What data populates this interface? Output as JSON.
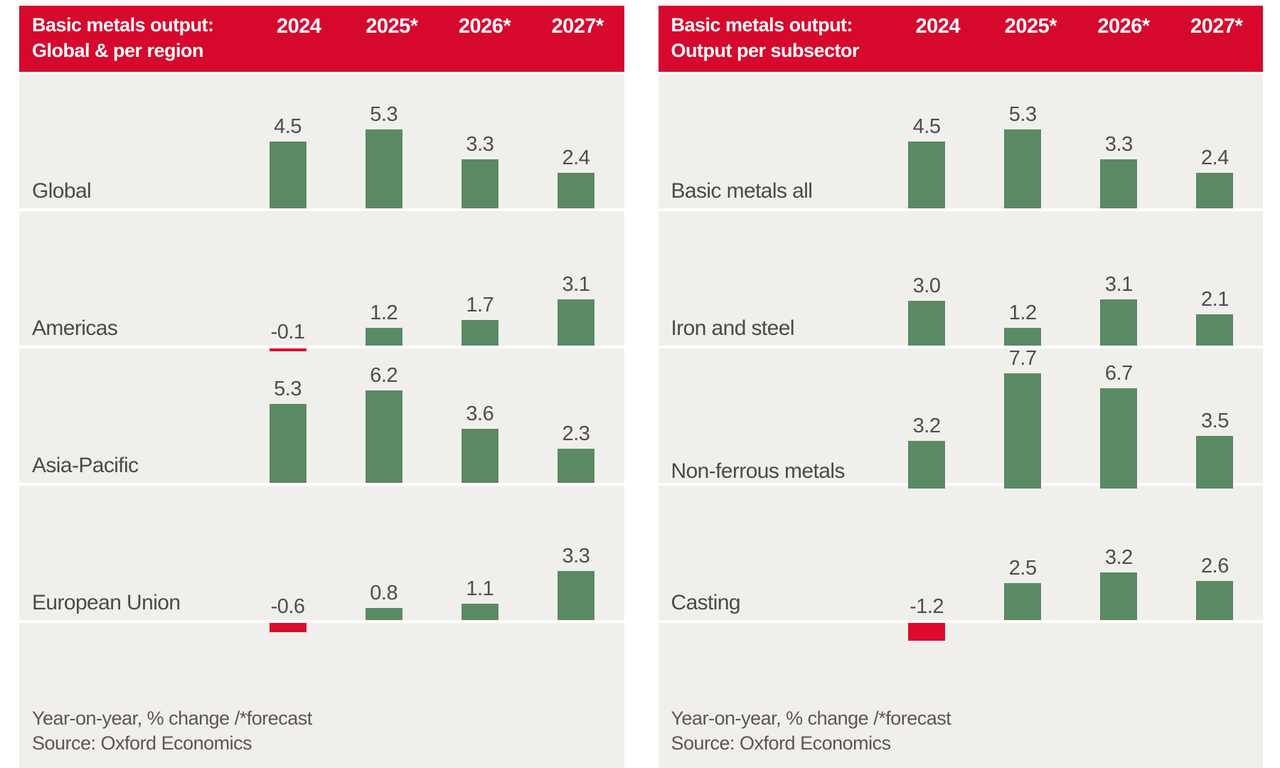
{
  "colors": {
    "header_bg": "#d6082e",
    "panel_bg": "#f1efec",
    "positive_bar": "#5a8a64",
    "negative_bar": "#dc0a2d",
    "header_text": "#ffffff",
    "row_label_text": "#4c4a47",
    "value_text": "#4f4d4b",
    "footer_text": "#5a5753",
    "separator": "#ffffff"
  },
  "chart_data": [
    {
      "type": "bar",
      "title": "Basic metals output:\nGlobal & per region",
      "columns": [
        "2024",
        "2025*",
        "2026*",
        "2027*"
      ],
      "rows": [
        {
          "label": "Global",
          "values": [
            4.5,
            5.3,
            3.3,
            2.4
          ]
        },
        {
          "label": "Americas",
          "values": [
            -0.1,
            1.2,
            1.7,
            3.1
          ]
        },
        {
          "label": "Asia-Pacific",
          "values": [
            5.3,
            6.2,
            3.6,
            2.3
          ]
        },
        {
          "label": "European Union",
          "values": [
            -0.6,
            0.8,
            1.1,
            3.3
          ]
        }
      ],
      "footnote": "Year-on-year, % change /*forecast",
      "source": "Source: Oxford Economics",
      "legend_position": "none",
      "grid": false
    },
    {
      "type": "bar",
      "title": "Basic metals output:\nOutput per subsector",
      "columns": [
        "2024",
        "2025*",
        "2026*",
        "2027*"
      ],
      "rows": [
        {
          "label": "Basic metals all",
          "values": [
            4.5,
            5.3,
            3.3,
            2.4
          ]
        },
        {
          "label": "Iron and steel",
          "values": [
            3.0,
            1.2,
            3.1,
            2.1
          ]
        },
        {
          "label": "Non-ferrous metals",
          "values": [
            3.2,
            7.7,
            6.7,
            3.5
          ]
        },
        {
          "label": "Casting",
          "values": [
            -1.2,
            2.5,
            3.2,
            2.6
          ]
        }
      ],
      "footnote": "Year-on-year, % change /*forecast",
      "source": "Source: Oxford Economics",
      "legend_position": "none",
      "grid": false
    }
  ]
}
